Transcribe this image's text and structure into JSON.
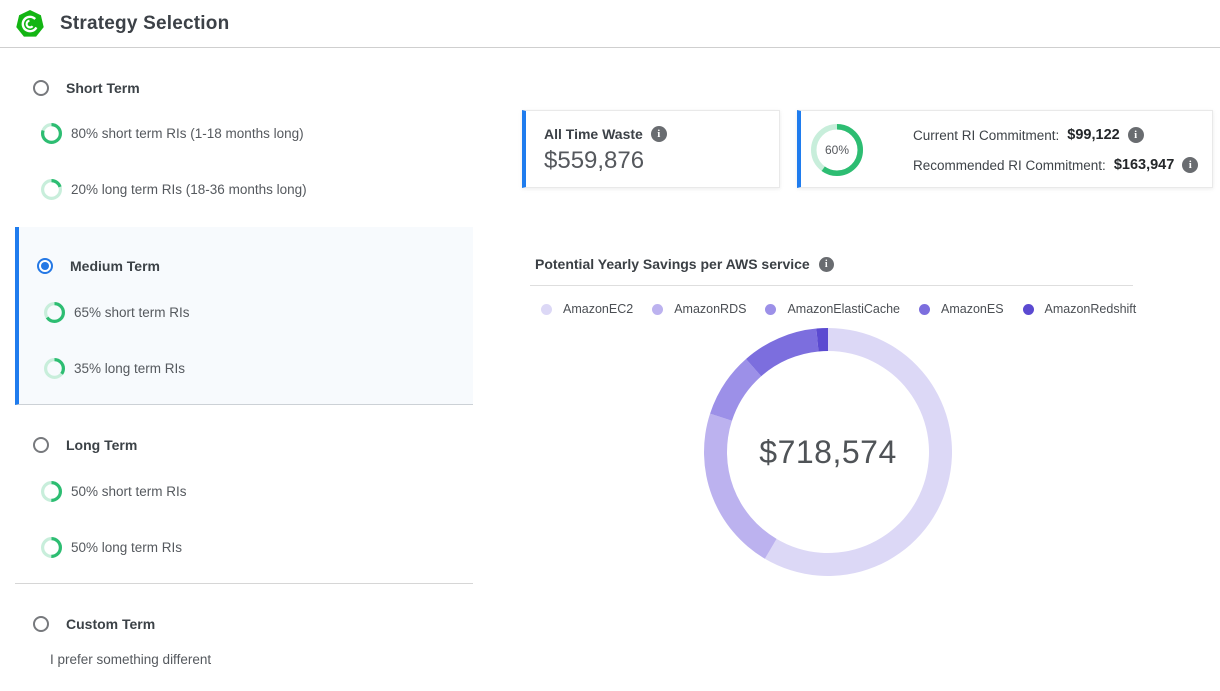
{
  "header": {
    "title": "Strategy Selection",
    "logo": "cloudcheckr-logo"
  },
  "theme": {
    "accent_blue": "#1f7cee",
    "brand_green": "#13b513",
    "ring_green": "#2dbd72",
    "ring_green_light": "#c8eedb",
    "selected_row_bg": "#f7fafd"
  },
  "strategy_options": [
    {
      "id": "short",
      "label": "Short Term",
      "selected": false,
      "items": [
        {
          "pct": 80,
          "label": "80% short term RIs (1-18 months long)"
        },
        {
          "pct": 20,
          "label": "20% long term RIs (18-36 months long)"
        }
      ]
    },
    {
      "id": "medium",
      "label": "Medium Term",
      "selected": true,
      "items": [
        {
          "pct": 65,
          "label": "65% short term RIs"
        },
        {
          "pct": 35,
          "label": "35% long term RIs"
        }
      ]
    },
    {
      "id": "long",
      "label": "Long Term",
      "selected": false,
      "items": [
        {
          "pct": 50,
          "label": "50% short term RIs"
        },
        {
          "pct": 50,
          "label": "50% long term RIs"
        }
      ]
    },
    {
      "id": "custom",
      "label": "Custom Term",
      "selected": false,
      "description": "I prefer something different",
      "items": []
    }
  ],
  "cards": {
    "waste": {
      "label": "All Time Waste",
      "value": "$559,876"
    },
    "commitment": {
      "gauge_pct": 60,
      "gauge_label": "60%",
      "current_label": "Current RI Commitment:",
      "current_value": "$99,122",
      "recommended_label": "Recommended RI Commitment:",
      "recommended_value": "$163,947"
    }
  },
  "chart_data": {
    "type": "pie",
    "subtype": "donut",
    "title": "Potential Yearly Savings per AWS service",
    "center_label": "$718,574",
    "total_usd": 718574,
    "legend_position": "top",
    "series": [
      {
        "name": "AmazonEC2",
        "pct": 58.5,
        "value_est_usd": 420366,
        "color": "#DCD8F6"
      },
      {
        "name": "AmazonRDS",
        "pct": 21.5,
        "value_est_usd": 154493,
        "color": "#BCB2EF"
      },
      {
        "name": "AmazonElastiCache",
        "pct": 8.5,
        "value_est_usd": 61079,
        "color": "#9C90E8"
      },
      {
        "name": "AmazonES",
        "pct": 10,
        "value_est_usd": 71857,
        "color": "#7C6EDE"
      },
      {
        "name": "AmazonRedshift",
        "pct": 1.5,
        "value_est_usd": 10779,
        "color": "#5B4AD1"
      }
    ]
  }
}
